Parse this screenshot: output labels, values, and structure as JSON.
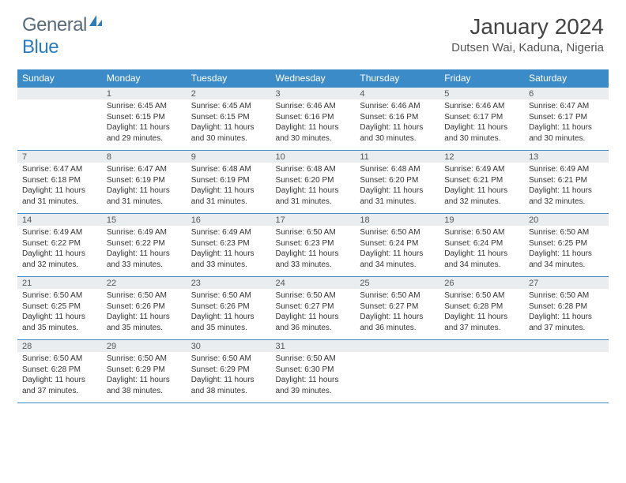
{
  "brand": {
    "part1": "General",
    "part2": "Blue"
  },
  "title": "January 2024",
  "location": "Dutsen Wai, Kaduna, Nigeria",
  "colors": {
    "header_bg": "#3b8bc8",
    "header_text": "#ffffff",
    "daynum_bg": "#e9edef",
    "border": "#3b8bc8",
    "logo_gray": "#5a6b7a",
    "logo_blue": "#2b7bbd"
  },
  "day_headers": [
    "Sunday",
    "Monday",
    "Tuesday",
    "Wednesday",
    "Thursday",
    "Friday",
    "Saturday"
  ],
  "layout": {
    "first_day_column": 1,
    "days_in_month": 31,
    "columns": 7
  },
  "days": [
    {
      "n": 1,
      "sunrise": "6:45 AM",
      "sunset": "6:15 PM",
      "daylight": "11 hours and 29 minutes."
    },
    {
      "n": 2,
      "sunrise": "6:45 AM",
      "sunset": "6:15 PM",
      "daylight": "11 hours and 30 minutes."
    },
    {
      "n": 3,
      "sunrise": "6:46 AM",
      "sunset": "6:16 PM",
      "daylight": "11 hours and 30 minutes."
    },
    {
      "n": 4,
      "sunrise": "6:46 AM",
      "sunset": "6:16 PM",
      "daylight": "11 hours and 30 minutes."
    },
    {
      "n": 5,
      "sunrise": "6:46 AM",
      "sunset": "6:17 PM",
      "daylight": "11 hours and 30 minutes."
    },
    {
      "n": 6,
      "sunrise": "6:47 AM",
      "sunset": "6:17 PM",
      "daylight": "11 hours and 30 minutes."
    },
    {
      "n": 7,
      "sunrise": "6:47 AM",
      "sunset": "6:18 PM",
      "daylight": "11 hours and 31 minutes."
    },
    {
      "n": 8,
      "sunrise": "6:47 AM",
      "sunset": "6:19 PM",
      "daylight": "11 hours and 31 minutes."
    },
    {
      "n": 9,
      "sunrise": "6:48 AM",
      "sunset": "6:19 PM",
      "daylight": "11 hours and 31 minutes."
    },
    {
      "n": 10,
      "sunrise": "6:48 AM",
      "sunset": "6:20 PM",
      "daylight": "11 hours and 31 minutes."
    },
    {
      "n": 11,
      "sunrise": "6:48 AM",
      "sunset": "6:20 PM",
      "daylight": "11 hours and 31 minutes."
    },
    {
      "n": 12,
      "sunrise": "6:49 AM",
      "sunset": "6:21 PM",
      "daylight": "11 hours and 32 minutes."
    },
    {
      "n": 13,
      "sunrise": "6:49 AM",
      "sunset": "6:21 PM",
      "daylight": "11 hours and 32 minutes."
    },
    {
      "n": 14,
      "sunrise": "6:49 AM",
      "sunset": "6:22 PM",
      "daylight": "11 hours and 32 minutes."
    },
    {
      "n": 15,
      "sunrise": "6:49 AM",
      "sunset": "6:22 PM",
      "daylight": "11 hours and 33 minutes."
    },
    {
      "n": 16,
      "sunrise": "6:49 AM",
      "sunset": "6:23 PM",
      "daylight": "11 hours and 33 minutes."
    },
    {
      "n": 17,
      "sunrise": "6:50 AM",
      "sunset": "6:23 PM",
      "daylight": "11 hours and 33 minutes."
    },
    {
      "n": 18,
      "sunrise": "6:50 AM",
      "sunset": "6:24 PM",
      "daylight": "11 hours and 34 minutes."
    },
    {
      "n": 19,
      "sunrise": "6:50 AM",
      "sunset": "6:24 PM",
      "daylight": "11 hours and 34 minutes."
    },
    {
      "n": 20,
      "sunrise": "6:50 AM",
      "sunset": "6:25 PM",
      "daylight": "11 hours and 34 minutes."
    },
    {
      "n": 21,
      "sunrise": "6:50 AM",
      "sunset": "6:25 PM",
      "daylight": "11 hours and 35 minutes."
    },
    {
      "n": 22,
      "sunrise": "6:50 AM",
      "sunset": "6:26 PM",
      "daylight": "11 hours and 35 minutes."
    },
    {
      "n": 23,
      "sunrise": "6:50 AM",
      "sunset": "6:26 PM",
      "daylight": "11 hours and 35 minutes."
    },
    {
      "n": 24,
      "sunrise": "6:50 AM",
      "sunset": "6:27 PM",
      "daylight": "11 hours and 36 minutes."
    },
    {
      "n": 25,
      "sunrise": "6:50 AM",
      "sunset": "6:27 PM",
      "daylight": "11 hours and 36 minutes."
    },
    {
      "n": 26,
      "sunrise": "6:50 AM",
      "sunset": "6:28 PM",
      "daylight": "11 hours and 37 minutes."
    },
    {
      "n": 27,
      "sunrise": "6:50 AM",
      "sunset": "6:28 PM",
      "daylight": "11 hours and 37 minutes."
    },
    {
      "n": 28,
      "sunrise": "6:50 AM",
      "sunset": "6:28 PM",
      "daylight": "11 hours and 37 minutes."
    },
    {
      "n": 29,
      "sunrise": "6:50 AM",
      "sunset": "6:29 PM",
      "daylight": "11 hours and 38 minutes."
    },
    {
      "n": 30,
      "sunrise": "6:50 AM",
      "sunset": "6:29 PM",
      "daylight": "11 hours and 38 minutes."
    },
    {
      "n": 31,
      "sunrise": "6:50 AM",
      "sunset": "6:30 PM",
      "daylight": "11 hours and 39 minutes."
    }
  ],
  "labels": {
    "sunrise": "Sunrise:",
    "sunset": "Sunset:",
    "daylight": "Daylight:"
  }
}
